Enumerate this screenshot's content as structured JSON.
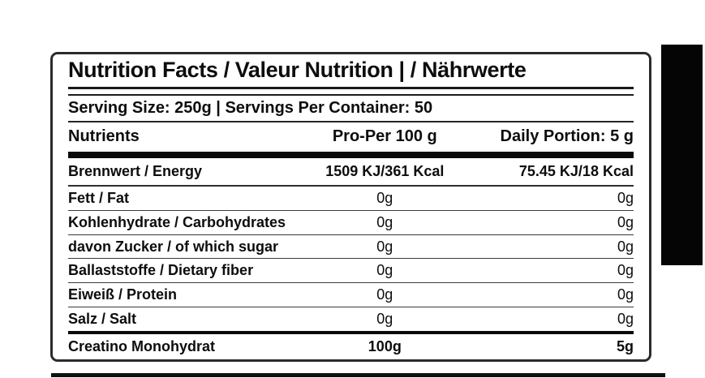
{
  "nutrition_label": {
    "title": "Nutrition Facts / Valeur Nutrition | / Nährwerte",
    "serving_line": "Serving Size: 250g | Servings Per Container: 50",
    "columns": {
      "nutrients": "Nutrients",
      "per_100g": "Pro-Per 100 g",
      "daily_portion": "Daily Portion: 5 g"
    },
    "rows": [
      {
        "label": "Brennwert / Energy",
        "per_100g": "1509 KJ/361 Kcal",
        "daily_portion": "75.45 KJ/18 Kcal"
      },
      {
        "label": "Fett / Fat",
        "per_100g": "0g",
        "daily_portion": "0g"
      },
      {
        "label": "Kohlenhydrate / Carbohydrates",
        "per_100g": "0g",
        "daily_portion": "0g"
      },
      {
        "label": "davon Zucker / of which sugar",
        "per_100g": "0g",
        "daily_portion": "0g"
      },
      {
        "label": "Ballaststoffe / Dietary fiber",
        "per_100g": "0g",
        "daily_portion": "0g"
      },
      {
        "label": "Eiweiß / Protein",
        "per_100g": "0g",
        "daily_portion": "0g"
      },
      {
        "label": "Salz / Salt",
        "per_100g": "0g",
        "daily_portion": "0g"
      }
    ],
    "highlight_row": {
      "label": "Creatino Monohydrat",
      "per_100g": "100g",
      "daily_portion": "5g"
    }
  },
  "colors": {
    "ink": "#0d0d0d",
    "rule": "#3a3a3a",
    "separator_bar": "#0a0a0a",
    "box_border": "#2b2b2b",
    "background": "#ffffff"
  }
}
